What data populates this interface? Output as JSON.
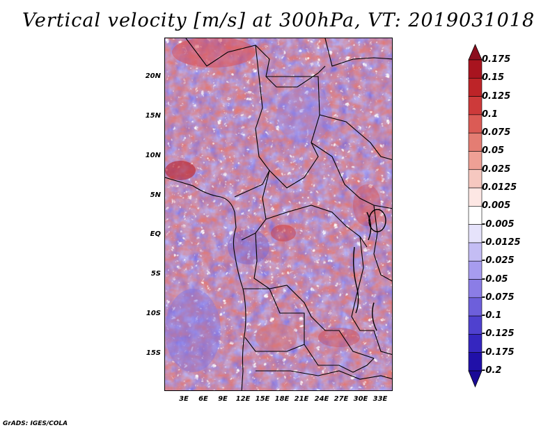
{
  "title": "Vertical velocity [m/s] at 300hPa, VT: 2019031018",
  "credit": "GrADS: IGES/COLA",
  "lat_labels": [
    "20N",
    "15N",
    "10N",
    "5N",
    "EQ",
    "5S",
    "10S",
    "15S"
  ],
  "lon_labels": [
    "3E",
    "6E",
    "9E",
    "12E",
    "15E",
    "18E",
    "21E",
    "24E",
    "27E",
    "30E",
    "33E"
  ],
  "colorbar": {
    "labels": [
      "0.175",
      "0.15",
      "0.125",
      "0.1",
      "0.075",
      "0.05",
      "0.025",
      "0.0125",
      "0.005",
      "-0.005",
      "-0.0125",
      "-0.025",
      "-0.05",
      "-0.075",
      "-0.1",
      "-0.125",
      "-0.175",
      "-0.2"
    ],
    "colors": [
      "#8c0f1e",
      "#a8141f",
      "#bd2428",
      "#cd3a3a",
      "#db5b55",
      "#e47d73",
      "#eea095",
      "#f6c8c0",
      "#fde7e4",
      "#ffffff",
      "#e6e3fb",
      "#c4bdf4",
      "#a79cef",
      "#8b7de6",
      "#6d5fdb",
      "#4f41cf",
      "#3526bf",
      "#2010a8",
      "#1a0a96"
    ]
  }
}
